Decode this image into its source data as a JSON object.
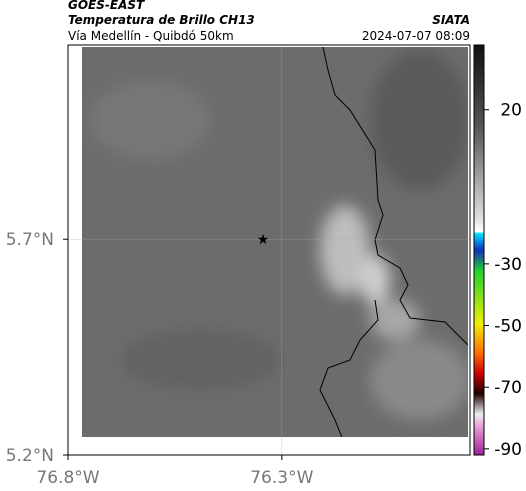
{
  "header": {
    "title": "GOES-EAST",
    "subtitle": "Temperatura de Brillo CH13",
    "region": "Vía Medellín - Quibdó 50km",
    "source": "SIATA",
    "timestamp": "2024-07-07 08:09"
  },
  "map": {
    "latlim": [
      5.2,
      6.15
    ],
    "lonlim": [
      -76.8,
      -75.86
    ],
    "lat_ticks": [
      {
        "value": 5.7,
        "label": "5.7°N"
      },
      {
        "value": 5.2,
        "label": "5.2°N"
      }
    ],
    "lon_ticks": [
      {
        "value": -76.8,
        "label": "76.8°W"
      },
      {
        "value": -76.3,
        "label": "76.3°W"
      }
    ]
  },
  "colorbar": {
    "lim": [
      -92,
      41
    ],
    "ticks": [
      20,
      -30,
      -50,
      -70,
      -90
    ]
  }
}
